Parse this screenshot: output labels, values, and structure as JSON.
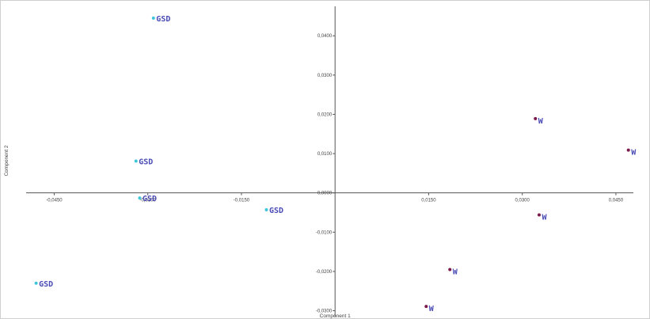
{
  "chart_data": {
    "type": "scatter",
    "xlabel": "Component 1",
    "ylabel": "Component 2",
    "xlim": [
      -0.0495,
      0.0478
    ],
    "ylim": [
      -0.0311,
      0.0475
    ],
    "x_ticks": [
      -0.045,
      -0.03,
      -0.015,
      0.015,
      0.03,
      0.045
    ],
    "x_tick_labels": [
      "-0,0450",
      "-0,0300",
      "-0,0150",
      "0,0150",
      "0,0300",
      "0,0450"
    ],
    "y_ticks": [
      0.04,
      0.03,
      0.02,
      0.01,
      0.0,
      -0.01,
      -0.02,
      -0.03
    ],
    "y_tick_labels": [
      "0,0400",
      "0,0300",
      "0,0200",
      "0,0100",
      "0,0000",
      "-0,0100",
      "-0,0200",
      "-0,0300"
    ],
    "grid": false,
    "axes_cross_at_origin": true,
    "colors": {
      "GSD": "#3ec7d8",
      "W": "#7a1a4a",
      "label": "#4a4bb5"
    },
    "points": [
      {
        "x": -0.0291,
        "y": 0.0445,
        "label": "GSD"
      },
      {
        "x": -0.0319,
        "y": 0.0081,
        "label": "GSD"
      },
      {
        "x": -0.0313,
        "y": -0.0013,
        "label": "GSD"
      },
      {
        "x": -0.011,
        "y": -0.0043,
        "label": "GSD"
      },
      {
        "x": -0.0479,
        "y": -0.023,
        "label": "GSD"
      },
      {
        "x": 0.0321,
        "y": 0.0189,
        "label": "W"
      },
      {
        "x": 0.047,
        "y": 0.0109,
        "label": "W"
      },
      {
        "x": 0.0327,
        "y": -0.0056,
        "label": "W"
      },
      {
        "x": 0.0184,
        "y": -0.0195,
        "label": "W"
      },
      {
        "x": 0.0146,
        "y": -0.0289,
        "label": "W"
      }
    ]
  }
}
